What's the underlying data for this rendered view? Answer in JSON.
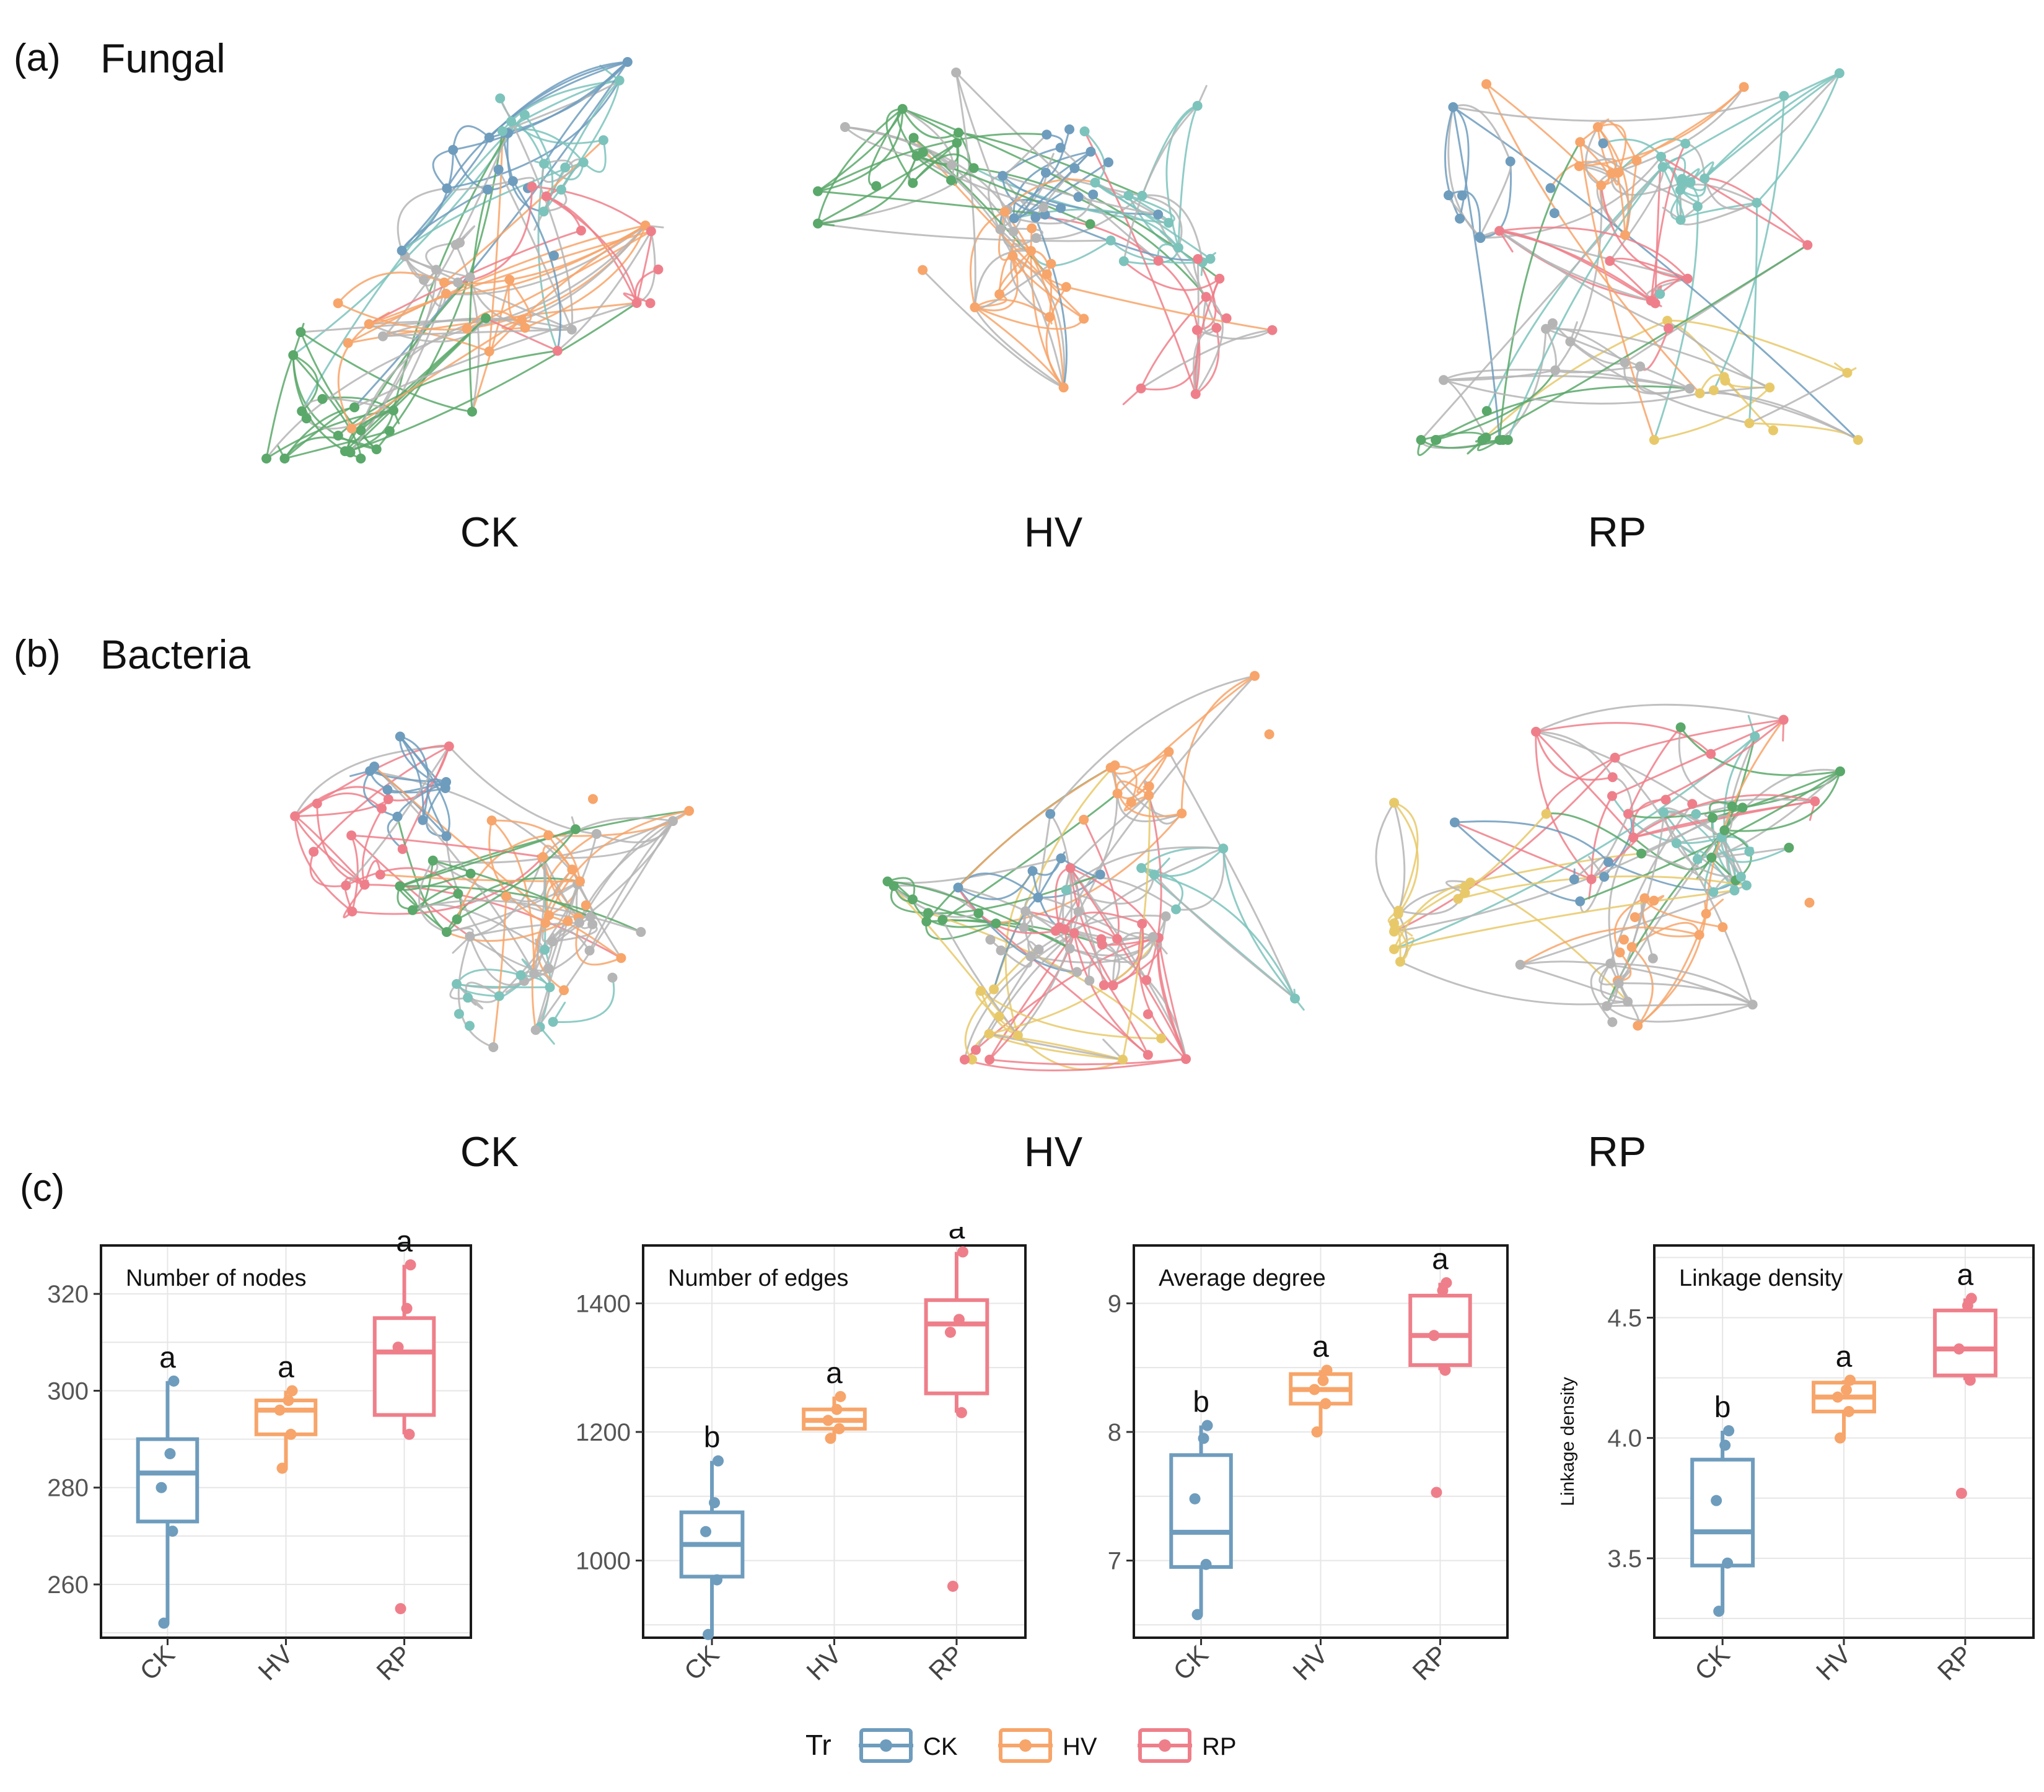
{
  "palette": {
    "CK": "#6e9cbd",
    "HV": "#f7a56a",
    "RP": "#ee7f8a",
    "gray": "#b5b5b5",
    "teal": "#7cc3bc",
    "green": "#5aa86a",
    "yellow": "#e8c96a"
  },
  "panels": {
    "a": {
      "letter": "(a)",
      "title": "Fungal",
      "networks": [
        "CK",
        "HV",
        "RP"
      ]
    },
    "b": {
      "letter": "(b)",
      "title": "Bacteria",
      "networks": [
        "CK",
        "HV",
        "RP"
      ]
    },
    "c": {
      "letter": "(c)"
    }
  },
  "chart_data": [
    {
      "type": "box",
      "title": "Number of nodes",
      "ylabel": "",
      "ylim": [
        249,
        330
      ],
      "yticks": [
        260,
        280,
        300,
        320
      ],
      "categories": [
        "CK",
        "HV",
        "RP"
      ],
      "boxes": [
        {
          "group": "CK",
          "min": 252,
          "q1": 273,
          "median": 283,
          "q3": 290,
          "max": 302,
          "points": [
            252,
            271,
            280,
            287,
            302
          ],
          "letter": "a"
        },
        {
          "group": "HV",
          "min": 284,
          "q1": 291,
          "median": 296,
          "q3": 298,
          "max": 300,
          "points": [
            284,
            291,
            296,
            298,
            300
          ],
          "letter": "a"
        },
        {
          "group": "RP",
          "min": 291,
          "q1": 295,
          "median": 308,
          "q3": 315,
          "max": 326,
          "points": [
            255,
            291,
            309,
            317,
            326
          ],
          "letter": "a"
        }
      ]
    },
    {
      "type": "box",
      "title": "Number of edges",
      "ylabel": "",
      "ylim": [
        880,
        1490
      ],
      "yticks": [
        1000,
        1200,
        1400
      ],
      "categories": [
        "CK",
        "HV",
        "RP"
      ],
      "boxes": [
        {
          "group": "CK",
          "min": 885,
          "q1": 975,
          "median": 1025,
          "q3": 1075,
          "max": 1155,
          "points": [
            885,
            970,
            1045,
            1090,
            1155
          ],
          "letter": "b"
        },
        {
          "group": "HV",
          "min": 1190,
          "q1": 1205,
          "median": 1218,
          "q3": 1235,
          "max": 1255,
          "points": [
            1190,
            1205,
            1218,
            1235,
            1255
          ],
          "letter": "a"
        },
        {
          "group": "RP",
          "min": 1230,
          "q1": 1260,
          "median": 1368,
          "q3": 1405,
          "max": 1480,
          "points": [
            960,
            1230,
            1355,
            1375,
            1480
          ],
          "letter": "a"
        }
      ]
    },
    {
      "type": "box",
      "title": "Average degree",
      "ylabel": "",
      "ylim": [
        6.4,
        9.45
      ],
      "yticks": [
        7,
        8,
        9
      ],
      "categories": [
        "CK",
        "HV",
        "RP"
      ],
      "boxes": [
        {
          "group": "CK",
          "min": 6.58,
          "q1": 6.95,
          "median": 7.22,
          "q3": 7.82,
          "max": 8.05,
          "points": [
            6.58,
            6.97,
            7.48,
            7.95,
            8.05
          ],
          "letter": "b"
        },
        {
          "group": "HV",
          "min": 8.0,
          "q1": 8.22,
          "median": 8.33,
          "q3": 8.45,
          "max": 8.48,
          "points": [
            8.0,
            8.22,
            8.33,
            8.4,
            8.48
          ],
          "letter": "a"
        },
        {
          "group": "RP",
          "min": 8.48,
          "q1": 8.52,
          "median": 8.75,
          "q3": 9.06,
          "max": 9.16,
          "points": [
            7.53,
            8.48,
            8.75,
            9.1,
            9.16
          ],
          "letter": "a"
        }
      ]
    },
    {
      "type": "box",
      "title": "Linkage density",
      "ylabel": "Linkage density",
      "ylim": [
        3.17,
        4.8
      ],
      "yticks": [
        3.5,
        4.0,
        4.5
      ],
      "ytick_labels": [
        "3.5",
        "4.0",
        "4.5"
      ],
      "categories": [
        "CK",
        "HV",
        "RP"
      ],
      "boxes": [
        {
          "group": "CK",
          "min": 3.28,
          "q1": 3.47,
          "median": 3.61,
          "q3": 3.91,
          "max": 4.03,
          "points": [
            3.28,
            3.48,
            3.74,
            3.97,
            4.03
          ],
          "letter": "b"
        },
        {
          "group": "HV",
          "min": 4.0,
          "q1": 4.11,
          "median": 4.17,
          "q3": 4.23,
          "max": 4.24,
          "points": [
            4.0,
            4.11,
            4.17,
            4.2,
            4.24
          ],
          "letter": "a"
        },
        {
          "group": "RP",
          "min": 4.24,
          "q1": 4.26,
          "median": 4.37,
          "q3": 4.53,
          "max": 4.58,
          "points": [
            3.77,
            4.24,
            4.37,
            4.55,
            4.58
          ],
          "letter": "a"
        }
      ]
    }
  ],
  "legend": {
    "title": "Tr",
    "items": [
      "CK",
      "HV",
      "RP"
    ]
  }
}
